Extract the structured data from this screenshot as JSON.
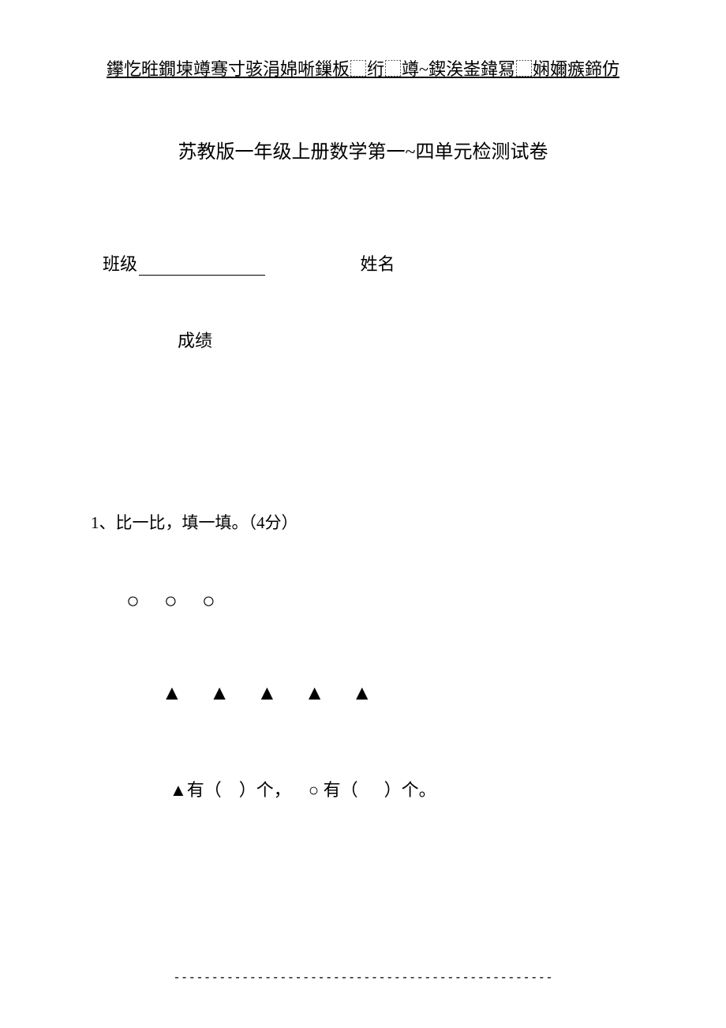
{
  "header": {
    "garbled_text": "鑻忔暀鐗堜竴骞寸骇涓婂唽鏁板⬚绗⬚竴~鍥涘崟鍏冩⬚娴嬭瘯鍗仿"
  },
  "document": {
    "title": "苏教版一年级上册数学第一~四单元检测试卷",
    "class_label": "班级",
    "name_label": "姓名",
    "score_label": "成绩"
  },
  "question1": {
    "number": "1、",
    "text": "比一比，填一填。（4分）",
    "circles": "○ ○ ○",
    "triangles": "▲ ▲ ▲ ▲ ▲",
    "answer_text": "▲有（ ）个， ○ 有（  ）个。"
  },
  "footer": {
    "dashes": "--------------------------------------------------"
  }
}
